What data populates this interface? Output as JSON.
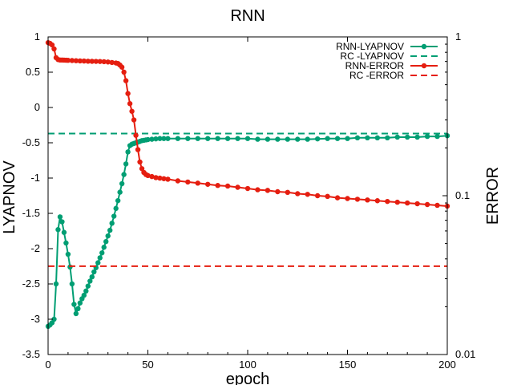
{
  "chart_data": {
    "type": "line",
    "title": "RNN",
    "xlabel": "epoch",
    "ylabel": "LYAPNOV",
    "y2label": "ERROR",
    "xlim": [
      0,
      200
    ],
    "ylim": [
      -3.5,
      1
    ],
    "y2lim": [
      0.01,
      1
    ],
    "y2scale": "log",
    "grid": false,
    "legend_position": "top-right",
    "x_ticks": [
      "0",
      "50",
      "100",
      "150",
      "200"
    ],
    "x_tick_values": [
      0,
      50,
      100,
      150,
      200
    ],
    "y_ticks": [
      "1",
      "0.5",
      "0",
      "-0.5",
      "-1",
      "-1.5",
      "-2",
      "-2.5",
      "-3",
      "-3.5"
    ],
    "y_tick_values": [
      1,
      0.5,
      0,
      -0.5,
      -1,
      -1.5,
      -2,
      -2.5,
      -3,
      -3.5
    ],
    "y2_ticks": [
      "1",
      "0.1",
      "0.01"
    ],
    "y2_tick_values": [
      1,
      0.1,
      0.01
    ],
    "series": [
      {
        "name": "RNN-LYAPNOV",
        "axis": "left",
        "color": "#009e73",
        "style": "linespoints",
        "x": [
          0,
          1,
          2,
          3,
          4,
          5,
          6,
          7,
          8,
          9,
          10,
          11,
          12,
          13,
          14,
          15,
          16,
          17,
          18,
          19,
          20,
          21,
          22,
          23,
          24,
          25,
          26,
          27,
          28,
          29,
          30,
          31,
          32,
          33,
          34,
          35,
          36,
          37,
          38,
          39,
          40,
          41,
          42,
          43,
          44,
          45,
          46,
          47,
          48,
          49,
          50,
          52,
          54,
          56,
          58,
          60,
          65,
          70,
          75,
          80,
          85,
          90,
          95,
          100,
          105,
          110,
          115,
          120,
          125,
          130,
          135,
          140,
          145,
          150,
          155,
          160,
          165,
          170,
          175,
          180,
          185,
          190,
          195,
          200
        ],
        "y": [
          -3.1,
          -3.08,
          -3.05,
          -3.0,
          -2.5,
          -1.73,
          -1.55,
          -1.62,
          -1.77,
          -1.92,
          -2.08,
          -2.26,
          -2.5,
          -2.79,
          -2.92,
          -2.85,
          -2.77,
          -2.71,
          -2.66,
          -2.6,
          -2.53,
          -2.46,
          -2.4,
          -2.33,
          -2.27,
          -2.2,
          -2.13,
          -2.06,
          -1.98,
          -1.9,
          -1.82,
          -1.74,
          -1.64,
          -1.54,
          -1.43,
          -1.32,
          -1.2,
          -1.08,
          -0.95,
          -0.8,
          -0.63,
          -0.54,
          -0.52,
          -0.51,
          -0.5,
          -0.49,
          -0.48,
          -0.47,
          -0.465,
          -0.46,
          -0.455,
          -0.45,
          -0.445,
          -0.44,
          -0.44,
          -0.44,
          -0.44,
          -0.44,
          -0.44,
          -0.44,
          -0.44,
          -0.44,
          -0.44,
          -0.44,
          -0.45,
          -0.45,
          -0.45,
          -0.45,
          -0.45,
          -0.45,
          -0.445,
          -0.44,
          -0.44,
          -0.44,
          -0.43,
          -0.43,
          -0.43,
          -0.43,
          -0.42,
          -0.42,
          -0.42,
          -0.41,
          -0.41,
          -0.4
        ]
      },
      {
        "name": "RC -LYAPNOV",
        "axis": "left",
        "color": "#009e73",
        "style": "dashed",
        "x": [
          0,
          200
        ],
        "y": [
          -0.37,
          -0.37
        ]
      },
      {
        "name": "RNN-ERROR",
        "axis": "right",
        "color": "#e51e10",
        "style": "linespoints",
        "x": [
          0,
          1,
          2,
          3,
          4,
          5,
          6,
          7,
          8,
          9,
          10,
          12,
          14,
          16,
          18,
          20,
          22,
          24,
          26,
          28,
          30,
          32,
          34,
          35,
          36,
          37,
          38,
          39,
          40,
          41,
          42,
          43,
          44,
          45,
          46,
          47,
          48,
          49,
          50,
          52,
          54,
          56,
          58,
          60,
          65,
          70,
          75,
          80,
          85,
          90,
          95,
          100,
          105,
          110,
          115,
          120,
          125,
          130,
          135,
          140,
          145,
          150,
          155,
          160,
          165,
          170,
          175,
          180,
          185,
          190,
          195,
          200
        ],
        "y": [
          0.92,
          0.91,
          0.89,
          0.84,
          0.74,
          0.72,
          0.715,
          0.715,
          0.714,
          0.713,
          0.712,
          0.71,
          0.708,
          0.706,
          0.705,
          0.703,
          0.702,
          0.701,
          0.7,
          0.698,
          0.695,
          0.69,
          0.685,
          0.68,
          0.665,
          0.645,
          0.6,
          0.53,
          0.44,
          0.38,
          0.34,
          0.3,
          0.24,
          0.195,
          0.163,
          0.148,
          0.14,
          0.136,
          0.134,
          0.132,
          0.13,
          0.129,
          0.128,
          0.127,
          0.124,
          0.122,
          0.12,
          0.118,
          0.116,
          0.115,
          0.113,
          0.111,
          0.109,
          0.108,
          0.106,
          0.105,
          0.103,
          0.102,
          0.1,
          0.099,
          0.097,
          0.096,
          0.095,
          0.094,
          0.093,
          0.092,
          0.091,
          0.09,
          0.089,
          0.088,
          0.087,
          0.086
        ]
      },
      {
        "name": "RC -ERROR",
        "axis": "right",
        "color": "#e51e10",
        "style": "dashed",
        "x": [
          0,
          200
        ],
        "y": [
          0.036,
          0.036
        ]
      }
    ]
  }
}
